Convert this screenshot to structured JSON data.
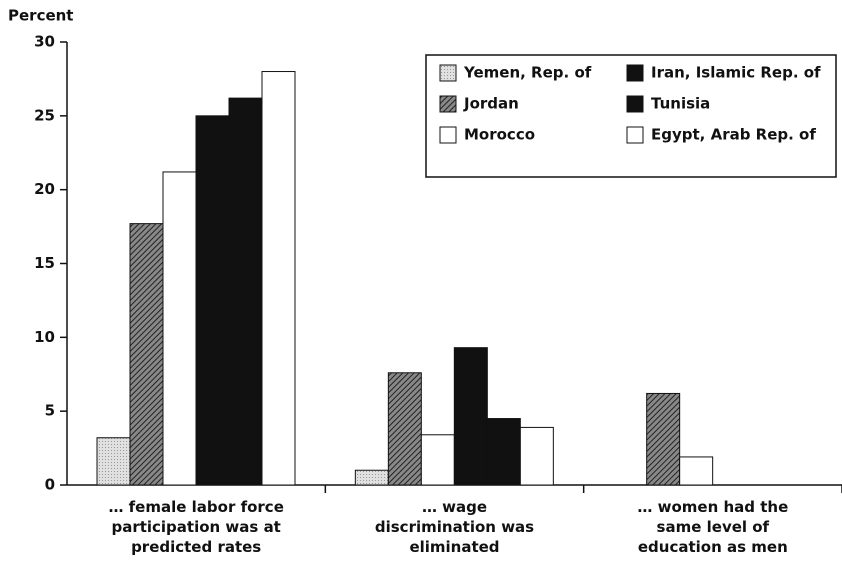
{
  "chart_data": {
    "type": "bar",
    "y_label": "Percent",
    "categories": [
      "… female labor force participation was at predicted rates",
      "… wage discrimination was eliminated",
      "… women had the same level of education as men"
    ],
    "series": [
      {
        "name": "Yemen, Rep. of",
        "color": "#d8d8d8",
        "pattern": "dots",
        "values": [
          3.2,
          1.0,
          null
        ]
      },
      {
        "name": "Jordan",
        "color": "#666666",
        "pattern": "hatch",
        "values": [
          17.7,
          7.6,
          6.2
        ]
      },
      {
        "name": "Morocco",
        "color": "#ffffff",
        "values": [
          21.2,
          3.4,
          1.9
        ]
      },
      {
        "name": "Iran, Islamic Rep. of",
        "color": "#111111",
        "values": [
          25.0,
          9.3,
          null
        ]
      },
      {
        "name": "Tunisia",
        "color": "#111111",
        "values": [
          26.2,
          4.5,
          null
        ]
      },
      {
        "name": "Egypt, Arab Rep. of",
        "color": "#ffffff",
        "values": [
          28.0,
          3.9,
          null
        ]
      }
    ],
    "ylim": [
      0,
      30
    ],
    "yticks": [
      0,
      5,
      10,
      15,
      20,
      25,
      30
    ],
    "legend": "upper right"
  }
}
